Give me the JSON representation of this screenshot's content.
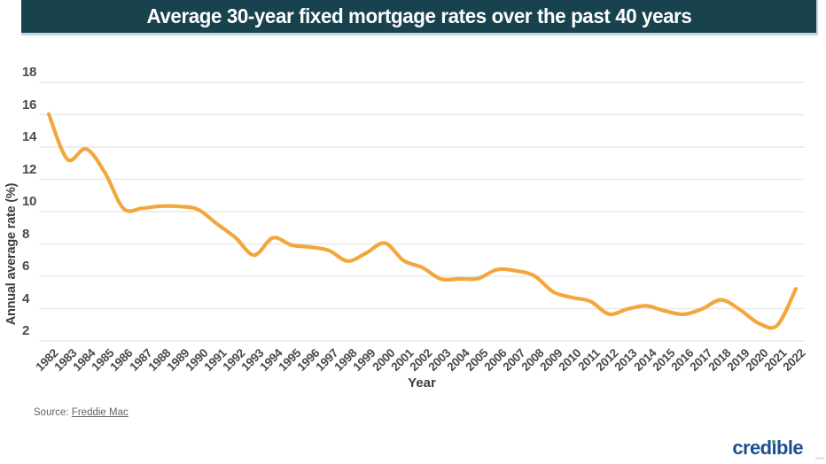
{
  "header": {
    "title": "Average 30-year fixed mortgage rates over the past 40 years",
    "bg_color": "#18424e",
    "edge_color": "#b9d8e2"
  },
  "chart_data": {
    "type": "line",
    "title": "Average 30-year fixed mortgage rates over the past 40 years",
    "xlabel": "Year",
    "ylabel": "Annual average rate (%)",
    "categories": [
      "1982",
      "1983",
      "1984",
      "1985",
      "1986",
      "1987",
      "1988",
      "1989",
      "1990",
      "1991",
      "1992",
      "1993",
      "1994",
      "1995",
      "1996",
      "1997",
      "1998",
      "1999",
      "2000",
      "2001",
      "2002",
      "2003",
      "2004",
      "2005",
      "2006",
      "2007",
      "2008",
      "2009",
      "2010",
      "2011",
      "2012",
      "2013",
      "2014",
      "2015",
      "2016",
      "2017",
      "2018",
      "2019",
      "2020",
      "2021",
      "2022"
    ],
    "values": [
      16.04,
      13.24,
      13.88,
      12.43,
      10.19,
      10.21,
      10.34,
      10.32,
      10.13,
      9.25,
      8.39,
      7.31,
      8.38,
      7.93,
      7.81,
      7.6,
      6.94,
      7.44,
      8.05,
      6.97,
      6.54,
      5.83,
      5.84,
      5.87,
      6.41,
      6.34,
      6.03,
      5.04,
      4.69,
      4.45,
      3.66,
      3.98,
      4.17,
      3.85,
      3.65,
      3.99,
      4.54,
      3.94,
      3.1,
      2.96,
      5.22
    ],
    "yticks": [
      2,
      4,
      6,
      8,
      10,
      12,
      14,
      16,
      18
    ],
    "ylim": [
      2,
      18
    ],
    "grid": true,
    "legend": false,
    "line_color": "#F2A73D",
    "grid_color": "#e9e9e9"
  },
  "source": {
    "prefix": "Source: ",
    "link_text": "Freddie Mac"
  },
  "brand": {
    "name": "credible",
    "wordmark_part1": "cred",
    "wordmark_i": "ı",
    "wordmark_part2": "ble",
    "color": "#1d4f91",
    "dot_color": "#55ab77"
  }
}
